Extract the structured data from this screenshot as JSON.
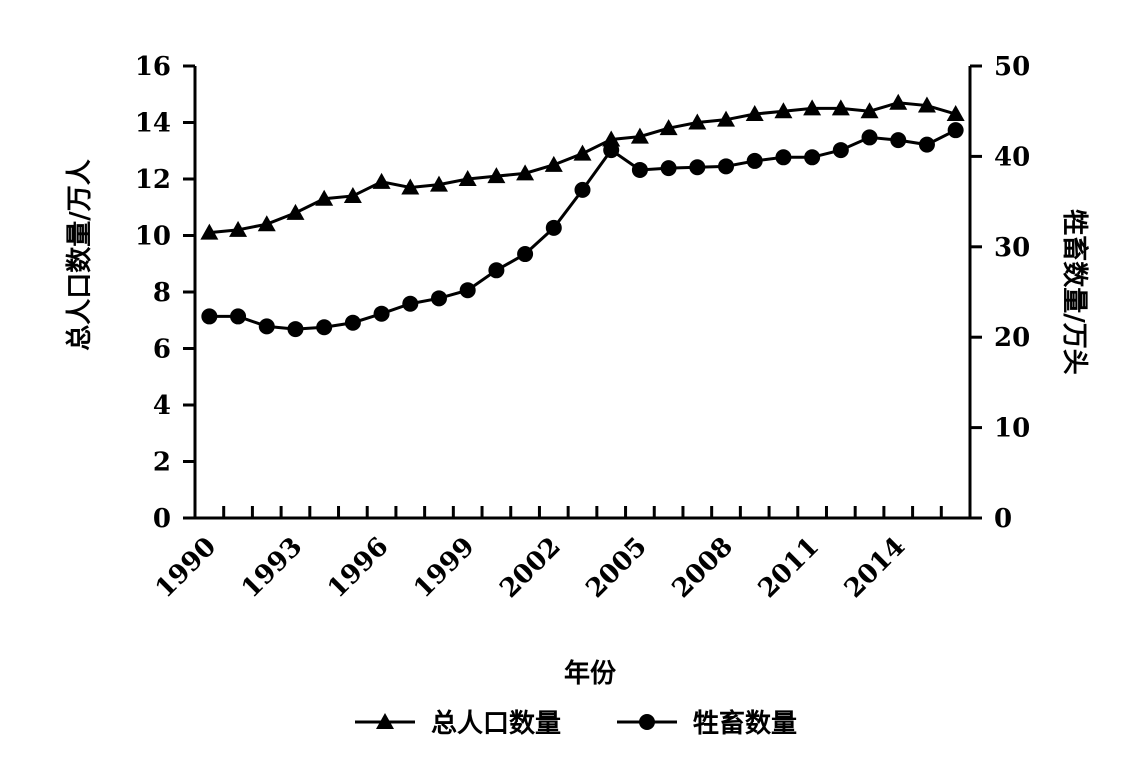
{
  "chart_data": {
    "type": "line",
    "categories": [
      "1990",
      null,
      null,
      "1993",
      null,
      null,
      "1996",
      null,
      null,
      "1999",
      null,
      null,
      "2002",
      null,
      null,
      "2005",
      null,
      null,
      "2008",
      null,
      null,
      "2011",
      null,
      null,
      "2014",
      null,
      null
    ],
    "x_label": "年份",
    "y_label": "总人口数量/万人",
    "y2_label": "牲畜数量/万头",
    "ylim": [
      0,
      16
    ],
    "yticks": [
      0,
      2,
      4,
      6,
      8,
      10,
      12,
      14,
      16
    ],
    "y2lim": [
      0,
      50
    ],
    "y2ticks": [
      0,
      10,
      20,
      30,
      40,
      50
    ],
    "legend": "bottom",
    "series": [
      {
        "name": "总人口数量",
        "color": "#000000",
        "marker": "triangle",
        "values": [
          10.1,
          10.2,
          10.4,
          10.8,
          11.3,
          11.4,
          11.9,
          11.7,
          11.8,
          12.0,
          12.1,
          12.2,
          12.5,
          12.9,
          13.4,
          13.5,
          13.8,
          14.0,
          14.1,
          14.3,
          14.4,
          14.5,
          14.5,
          14.4,
          14.7,
          14.6,
          14.3
        ]
      },
      {
        "name": "牲畜数量",
        "color": "#000000",
        "marker": "circle",
        "axis": "y2",
        "values": [
          22.3,
          22.3,
          21.2,
          20.9,
          21.1,
          21.6,
          22.6,
          23.7,
          24.3,
          25.2,
          27.4,
          29.2,
          32.1,
          36.3,
          40.7,
          38.5,
          38.7,
          38.8,
          38.9,
          39.5,
          39.9,
          39.9,
          40.7,
          42.1,
          41.8,
          41.3,
          42.9
        ]
      }
    ]
  }
}
